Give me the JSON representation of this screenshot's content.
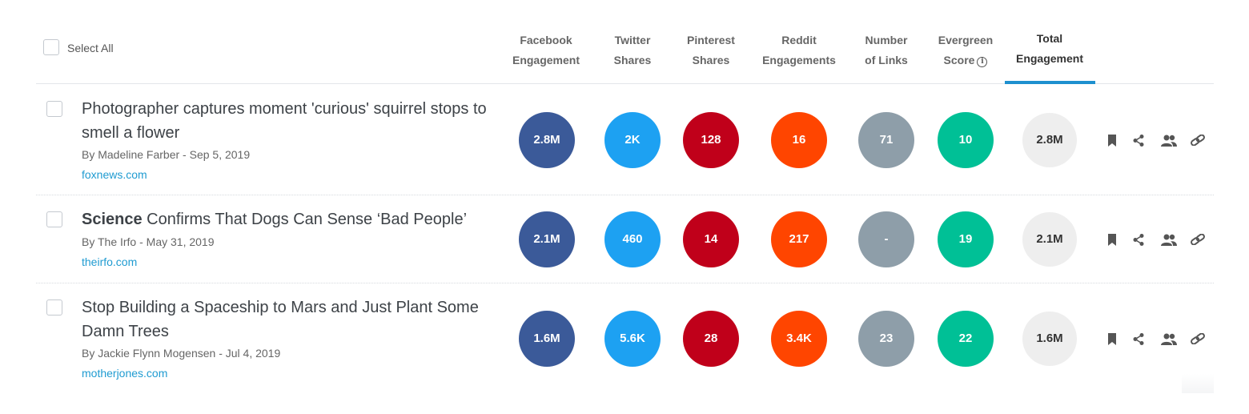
{
  "header": {
    "select_all": "Select All",
    "columns": [
      {
        "line1": "Facebook",
        "line2": "Engagement"
      },
      {
        "line1": "Twitter",
        "line2": "Shares"
      },
      {
        "line1": "Pinterest",
        "line2": "Shares"
      },
      {
        "line1": "Reddit",
        "line2": "Engagements"
      },
      {
        "line1": "Number",
        "line2": "of Links"
      },
      {
        "line1": "Evergreen",
        "line2": "Score",
        "icon": "info-icon"
      },
      {
        "line1": "Total",
        "line2": "Engagement",
        "active": true
      }
    ]
  },
  "colors": {
    "facebook": "#3b5a99",
    "twitter": "#1da1f2",
    "pinterest": "#c0001a",
    "reddit": "#ff4500",
    "links": "#8e9ea9",
    "evergreen": "#00c096",
    "total": "#eeeeee",
    "link_text": "#1f9bd1",
    "active_tab": "#1e90cf"
  },
  "rows": [
    {
      "title_bold": "",
      "title": "Photographer captures moment 'curious' squirrel stops to smell a flower",
      "meta": "By Madeline Farber - Sep 5, 2019",
      "domain": "foxnews.com",
      "facebook": "2.8M",
      "twitter": "2K",
      "pinterest": "128",
      "reddit": "16",
      "links": "71",
      "evergreen": "10",
      "total": "2.8M"
    },
    {
      "title_bold": "Science",
      "title": " Confirms That Dogs Can Sense ‘Bad People’",
      "meta": "By The Irfo - May 31, 2019",
      "domain": "theirfo.com",
      "facebook": "2.1M",
      "twitter": "460",
      "pinterest": "14",
      "reddit": "217",
      "links": "-",
      "evergreen": "19",
      "total": "2.1M"
    },
    {
      "title_bold": "",
      "title": "Stop Building a Spaceship to Mars and Just Plant Some Damn Trees",
      "meta": "By Jackie Flynn Mogensen - Jul 4, 2019",
      "domain": "motherjones.com",
      "facebook": "1.6M",
      "twitter": "5.6K",
      "pinterest": "28",
      "reddit": "3.4K",
      "links": "23",
      "evergreen": "22",
      "total": "1.6M"
    }
  ],
  "row_actions": [
    "bookmark-icon",
    "share-icon",
    "users-icon",
    "link-icon"
  ]
}
